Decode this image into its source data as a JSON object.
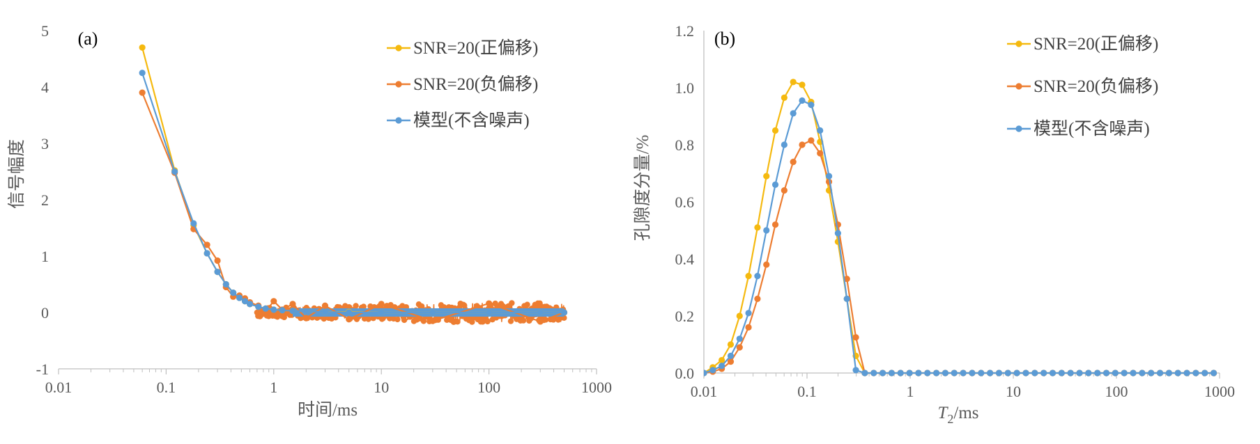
{
  "colors": {
    "yellow": "#F5B90F",
    "orange": "#ED7D31",
    "blue": "#5B9BD5",
    "axis": "#BFBFBF",
    "text": "#595959"
  },
  "chart_data": [
    {
      "panel_label": "(a)",
      "type": "line",
      "xscale": "log",
      "xlim": [
        0.01,
        1000
      ],
      "ylim": [
        -1,
        5
      ],
      "xticks": [
        "0.01",
        "0.1",
        "1",
        "10",
        "100",
        "1000"
      ],
      "yticks": [
        "-1",
        "0",
        "1",
        "2",
        "3",
        "4",
        "5"
      ],
      "xlabel": "时间/ms",
      "ylabel": "信号幅度",
      "legend_position": "top-right",
      "grid": false,
      "series": [
        {
          "name": "SNR=20(正偏移)",
          "color": "#F5B90F",
          "x": [
            0.06,
            0.12,
            0.18,
            0.24,
            0.3,
            0.36,
            0.42,
            0.48,
            0.54,
            0.6,
            0.72,
            0.84,
            1.0,
            1.2,
            1.5,
            2.0,
            3.0,
            5.0,
            10,
            30,
            100,
            300,
            500
          ],
          "y": [
            4.7,
            2.52,
            1.55,
            1.05,
            0.72,
            0.5,
            0.35,
            0.26,
            0.2,
            0.15,
            0.1,
            0.07,
            0.05,
            0.04,
            0.03,
            0.02,
            0.01,
            0.01,
            0.0,
            0.0,
            0.0,
            0.0,
            0.0
          ]
        },
        {
          "name": "SNR=20(负偏移)",
          "color": "#ED7D31",
          "x": [
            0.06,
            0.12,
            0.18,
            0.24,
            0.3,
            0.36,
            0.42,
            0.48,
            0.54,
            0.6,
            0.72,
            0.84,
            1.0,
            1.2,
            1.5,
            2.0,
            3.0,
            5.0,
            10,
            30,
            100,
            300,
            500
          ],
          "y": [
            3.9,
            2.48,
            1.48,
            1.2,
            0.92,
            0.45,
            0.28,
            0.3,
            0.25,
            0.18,
            0.12,
            0.02,
            0.2,
            0.05,
            0.15,
            -0.1,
            0.12,
            -0.12,
            0.15,
            -0.15,
            0.16,
            -0.16,
            0.0
          ]
        },
        {
          "name": "模型(不含噪声)",
          "color": "#5B9BD5",
          "x": [
            0.06,
            0.12,
            0.18,
            0.24,
            0.3,
            0.36,
            0.42,
            0.48,
            0.54,
            0.6,
            0.72,
            0.84,
            1.0,
            1.2,
            1.5,
            2.0,
            3.0,
            5.0,
            10,
            30,
            100,
            300,
            500
          ],
          "y": [
            4.25,
            2.5,
            1.58,
            1.05,
            0.72,
            0.5,
            0.35,
            0.26,
            0.2,
            0.15,
            0.1,
            0.07,
            0.05,
            0.04,
            0.03,
            0.02,
            0.01,
            0.0,
            0.0,
            0.0,
            0.0,
            0.0,
            0.0
          ]
        }
      ]
    },
    {
      "panel_label": "(b)",
      "type": "line",
      "xscale": "log",
      "xlim": [
        0.01,
        1000
      ],
      "ylim": [
        0,
        1.2
      ],
      "xticks": [
        "0.01",
        "0.1",
        "1",
        "10",
        "100",
        "1000"
      ],
      "yticks": [
        "0.0",
        "0.2",
        "0.4",
        "0.6",
        "0.8",
        "1.0",
        "1.2"
      ],
      "xlabel": "T2/ms",
      "xlabel_main": "T",
      "xlabel_sub": "2",
      "xlabel_rest": "/ms",
      "ylabel": "孔隙度分量/%",
      "legend_position": "top-right",
      "grid": false,
      "series": [
        {
          "name": "SNR=20(正偏移)",
          "color": "#F5B90F",
          "x": [
            0.01,
            0.0122,
            0.0149,
            0.0182,
            0.0222,
            0.0271,
            0.0331,
            0.0404,
            0.0493,
            0.0602,
            0.0735,
            0.0897,
            0.1096,
            0.1338,
            0.1634,
            0.1995,
            0.2436,
            0.2975,
            0.3632,
            0.4435,
            0.5415,
            0.6612,
            0.8074,
            0.9858,
            1.2038,
            1.47,
            1.795,
            2.192,
            2.676,
            3.268,
            3.99,
            4.873,
            5.95,
            7.265,
            8.871,
            10.83,
            13.23,
            16.15,
            19.72,
            24.08,
            29.41,
            35.91,
            43.85,
            53.54,
            65.38,
            79.83,
            97.48,
            119.0,
            145.3,
            177.5,
            216.7,
            264.6,
            323.1,
            394.5,
            481.7,
            588.2,
            718.3,
            877.1
          ],
          "y": [
            0.0,
            0.02,
            0.045,
            0.1,
            0.2,
            0.34,
            0.51,
            0.69,
            0.85,
            0.965,
            1.02,
            1.01,
            0.95,
            0.81,
            0.64,
            0.46,
            0.26,
            0.06,
            0.0,
            0.0,
            0.0,
            0.0,
            0.0,
            0.0,
            0.0,
            0.0,
            0.0,
            0.0,
            0.0,
            0.0,
            0.0,
            0.0,
            0.0,
            0.0,
            0.0,
            0.0,
            0.0,
            0.0,
            0.0,
            0.0,
            0.0,
            0.0,
            0.0,
            0.0,
            0.0,
            0.0,
            0.0,
            0.0,
            0.0,
            0.0,
            0.0,
            0.0,
            0.0,
            0.0,
            0.0,
            0.0,
            0.0,
            0.0
          ]
        },
        {
          "name": "SNR=20(负偏移)",
          "color": "#ED7D31",
          "x": [
            0.01,
            0.0122,
            0.0149,
            0.0182,
            0.0222,
            0.0271,
            0.0331,
            0.0404,
            0.0493,
            0.0602,
            0.0735,
            0.0897,
            0.1096,
            0.1338,
            0.1634,
            0.1995,
            0.2436,
            0.2975,
            0.3632,
            0.4435,
            0.5415,
            0.6612,
            0.8074,
            0.9858,
            1.2038,
            1.47,
            1.795,
            2.192,
            2.676,
            3.268,
            3.99,
            4.873,
            5.95,
            7.265,
            8.871,
            10.83,
            13.23,
            16.15,
            19.72,
            24.08,
            29.41,
            35.91,
            43.85,
            53.54,
            65.38,
            79.83,
            97.48,
            119.0,
            145.3,
            177.5,
            216.7,
            264.6,
            323.1,
            394.5,
            481.7,
            588.2,
            718.3,
            877.1
          ],
          "y": [
            0.0,
            0.005,
            0.015,
            0.04,
            0.09,
            0.16,
            0.26,
            0.38,
            0.52,
            0.64,
            0.74,
            0.8,
            0.815,
            0.77,
            0.67,
            0.52,
            0.33,
            0.125,
            0.0,
            0.0,
            0.0,
            0.0,
            0.0,
            0.0,
            0.0,
            0.0,
            0.0,
            0.0,
            0.0,
            0.0,
            0.0,
            0.0,
            0.0,
            0.0,
            0.0,
            0.0,
            0.0,
            0.0,
            0.0,
            0.0,
            0.0,
            0.0,
            0.0,
            0.0,
            0.0,
            0.0,
            0.0,
            0.0,
            0.0,
            0.0,
            0.0,
            0.0,
            0.0,
            0.0,
            0.0,
            0.0,
            0.0,
            0.0
          ]
        },
        {
          "name": "模型(不含噪声)",
          "color": "#5B9BD5",
          "x": [
            0.01,
            0.0122,
            0.0149,
            0.0182,
            0.0222,
            0.0271,
            0.0331,
            0.0404,
            0.0493,
            0.0602,
            0.0735,
            0.0897,
            0.1096,
            0.1338,
            0.1634,
            0.1995,
            0.2436,
            0.2975,
            0.3632,
            0.4435,
            0.5415,
            0.6612,
            0.8074,
            0.9858,
            1.2038,
            1.47,
            1.795,
            2.192,
            2.676,
            3.268,
            3.99,
            4.873,
            5.95,
            7.265,
            8.871,
            10.83,
            13.23,
            16.15,
            19.72,
            24.08,
            29.41,
            35.91,
            43.85,
            53.54,
            65.38,
            79.83,
            97.48,
            119.0,
            145.3,
            177.5,
            216.7,
            264.6,
            323.1,
            394.5,
            481.7,
            588.2,
            718.3,
            877.1
          ],
          "y": [
            0.0,
            0.01,
            0.025,
            0.06,
            0.12,
            0.21,
            0.34,
            0.5,
            0.66,
            0.8,
            0.91,
            0.955,
            0.94,
            0.85,
            0.69,
            0.49,
            0.26,
            0.01,
            0.0,
            0.0,
            0.0,
            0.0,
            0.0,
            0.0,
            0.0,
            0.0,
            0.0,
            0.0,
            0.0,
            0.0,
            0.0,
            0.0,
            0.0,
            0.0,
            0.0,
            0.0,
            0.0,
            0.0,
            0.0,
            0.0,
            0.0,
            0.0,
            0.0,
            0.0,
            0.0,
            0.0,
            0.0,
            0.0,
            0.0,
            0.0,
            0.0,
            0.0,
            0.0,
            0.0,
            0.0,
            0.0,
            0.0,
            0.0
          ]
        }
      ]
    }
  ]
}
